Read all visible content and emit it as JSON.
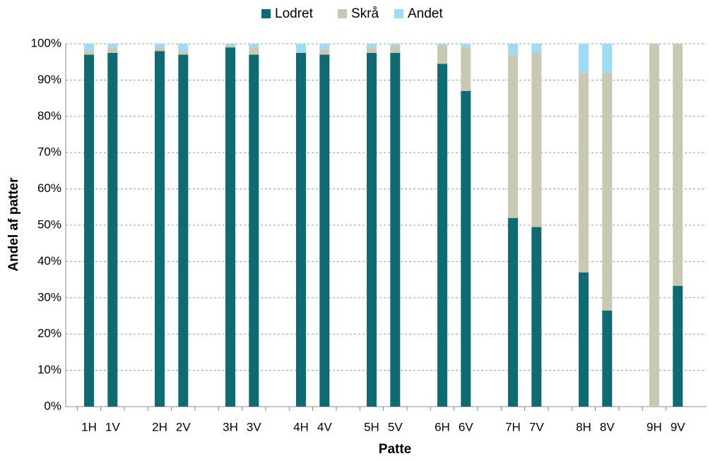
{
  "chart_data": {
    "type": "stacked_bar",
    "x_label": "Patte",
    "y_label": "Andel af patter",
    "categories": [
      "1H",
      "1V",
      null,
      "2H",
      "2V",
      null,
      "3H",
      "3V",
      null,
      "4H",
      "4V",
      null,
      "5H",
      "5V",
      null,
      "6H",
      "6V",
      null,
      "7H",
      "7V",
      null,
      "8H",
      "8V",
      null,
      "9H",
      "9V"
    ],
    "series": [
      {
        "name": "Lodret",
        "color": "#0e6b73",
        "values": [
          97,
          97.5,
          null,
          98,
          97,
          null,
          99,
          97,
          null,
          97.5,
          97,
          null,
          97.5,
          97.5,
          null,
          94.5,
          87,
          null,
          52,
          49.5,
          null,
          37,
          26.5,
          null,
          0,
          33.3
        ]
      },
      {
        "name": "Skrå",
        "color": "#c9c8b2",
        "values": [
          1,
          1.5,
          null,
          1,
          1,
          null,
          0.5,
          2,
          null,
          0,
          1.5,
          null,
          1.5,
          2,
          null,
          5,
          12,
          null,
          45,
          48,
          null,
          55,
          65.5,
          null,
          100,
          66.7
        ]
      },
      {
        "name": "Andet",
        "color": "#9ddcf4",
        "values": [
          2,
          1,
          null,
          1,
          2,
          null,
          0.5,
          1,
          null,
          2.5,
          1.5,
          null,
          1,
          0.5,
          null,
          0.5,
          1,
          null,
          3,
          2.5,
          null,
          8,
          8,
          null,
          0,
          0
        ]
      }
    ],
    "ylim": [
      0,
      100
    ],
    "yticks": [
      {
        "value": 0,
        "label": "0%"
      },
      {
        "value": 10,
        "label": "10%"
      },
      {
        "value": 20,
        "label": "20%"
      },
      {
        "value": 30,
        "label": "30%"
      },
      {
        "value": 40,
        "label": "40%"
      },
      {
        "value": 50,
        "label": "50%"
      },
      {
        "value": 60,
        "label": "60%"
      },
      {
        "value": 70,
        "label": "70%"
      },
      {
        "value": 80,
        "label": "80%"
      },
      {
        "value": 90,
        "label": "90%"
      },
      {
        "value": 100,
        "label": "100%"
      }
    ],
    "grid": true,
    "legend": "top"
  }
}
